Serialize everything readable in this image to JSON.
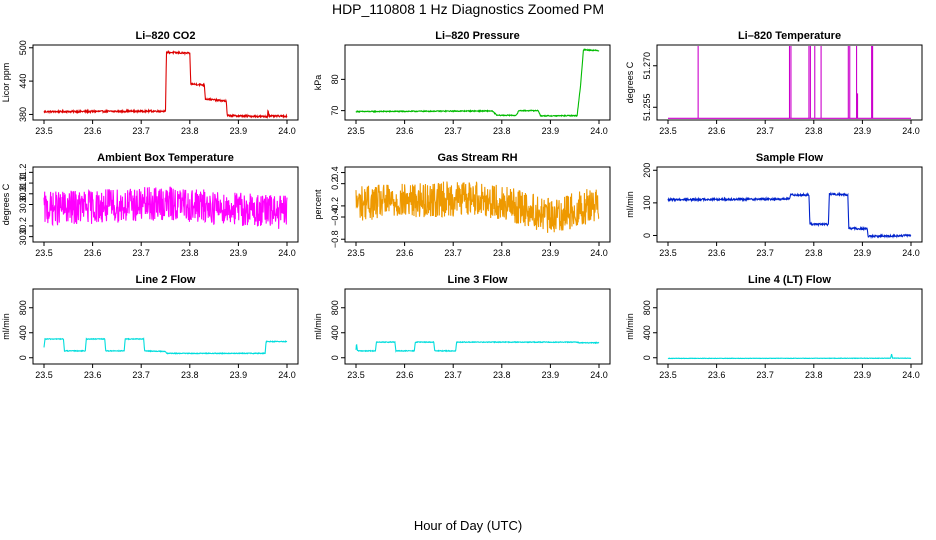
{
  "figure": {
    "title": "HDP_110808  1 Hz Diagnostics Zoomed PM",
    "xlabel": "Hour of Day (UTC)"
  },
  "chart_data": [
    {
      "type": "line",
      "title": "Li–820 CO2",
      "ylabel": "Licor ppm",
      "color": "#dd0000",
      "xlim": [
        23.5,
        24.0
      ],
      "ylim": [
        370,
        505
      ],
      "xticks": [
        "23.5",
        "23.6",
        "23.7",
        "23.8",
        "23.9",
        "24.0"
      ],
      "yticks": [
        {
          "v": 380,
          "label": "380"
        },
        {
          "v": 440,
          "label": "440"
        },
        {
          "v": 500,
          "label": "500"
        }
      ],
      "noise": 1.5,
      "segments": [
        [
          23.5,
          385
        ],
        [
          23.75,
          386
        ],
        [
          23.752,
          492
        ],
        [
          23.8,
          490
        ],
        [
          23.802,
          435
        ],
        [
          23.83,
          433
        ],
        [
          23.832,
          408
        ],
        [
          23.875,
          404
        ],
        [
          23.877,
          378
        ],
        [
          23.96,
          376
        ],
        [
          23.961,
          390
        ],
        [
          23.963,
          377
        ],
        [
          24.0,
          377
        ]
      ]
    },
    {
      "type": "line",
      "title": "Li–820 Pressure",
      "ylabel": "kPa",
      "color": "#00bb00",
      "xlim": [
        23.5,
        24.0
      ],
      "ylim": [
        67,
        91
      ],
      "xticks": [
        "23.5",
        "23.6",
        "23.7",
        "23.8",
        "23.9",
        "24.0"
      ],
      "yticks": [
        {
          "v": 70,
          "label": "70"
        },
        {
          "v": 80,
          "label": "80"
        }
      ],
      "noise": 0.15,
      "segments": [
        [
          23.5,
          69.7
        ],
        [
          23.78,
          69.9
        ],
        [
          23.79,
          68.5
        ],
        [
          23.83,
          68.5
        ],
        [
          23.835,
          70.0
        ],
        [
          23.875,
          70.0
        ],
        [
          23.88,
          68.3
        ],
        [
          23.955,
          68.4
        ],
        [
          23.962,
          78
        ],
        [
          23.968,
          89.5
        ],
        [
          24.0,
          89.2
        ]
      ]
    },
    {
      "type": "line",
      "title": "Li–820 Temperature",
      "ylabel": "degrees C",
      "color": "#cc00cc",
      "xlim": [
        23.5,
        24.0
      ],
      "ylim": [
        51.2504,
        51.2775
      ],
      "xticks": [
        "23.5",
        "23.6",
        "23.7",
        "23.8",
        "23.9",
        "24.0"
      ],
      "yticks": [
        {
          "v": 51.255,
          "label": "51.255"
        },
        {
          "v": 51.27,
          "label": "51.270"
        }
      ],
      "noise": 0,
      "base": 51.251,
      "spikes": [
        [
          23.562,
          51.2775
        ],
        [
          23.75,
          51.2775
        ],
        [
          23.753,
          51.2775
        ],
        [
          23.79,
          51.2775
        ],
        [
          23.793,
          51.2775
        ],
        [
          23.802,
          51.2775
        ],
        [
          23.815,
          51.2775
        ],
        [
          23.871,
          51.2775
        ],
        [
          23.874,
          51.2775
        ],
        [
          23.888,
          51.2775
        ],
        [
          23.89,
          51.26
        ],
        [
          23.919,
          51.2775
        ],
        [
          23.921,
          51.2775
        ]
      ]
    },
    {
      "type": "line",
      "title": "Ambient Box Temperature",
      "ylabel": "degrees C",
      "color": "#ff00ff",
      "xlim": [
        23.5,
        24.0
      ],
      "ylim": [
        29.9,
        31.3
      ],
      "xticks": [
        "23.5",
        "23.6",
        "23.7",
        "23.8",
        "23.9",
        "24.0"
      ],
      "yticks": [
        {
          "v": 30.0,
          "label": "30.0"
        },
        {
          "v": 30.2,
          "label": "30.2"
        },
        {
          "v": 30.6,
          "label": "30.6"
        },
        {
          "v": 30.8,
          "label": "30.8"
        },
        {
          "v": 31.0,
          "label": "31.0"
        },
        {
          "v": 31.2,
          "label": "31.2"
        }
      ],
      "noise": 0.32,
      "segments": [
        [
          23.5,
          30.52
        ],
        [
          23.75,
          30.62
        ],
        [
          24.0,
          30.45
        ]
      ]
    },
    {
      "type": "line",
      "title": "Gas Stream RH",
      "ylabel": "percent",
      "color": "#ee9900",
      "xlim": [
        23.5,
        24.0
      ],
      "ylim": [
        -0.85,
        0.5
      ],
      "xticks": [
        "23.5",
        "23.6",
        "23.7",
        "23.8",
        "23.9",
        "24.0"
      ],
      "yticks": [
        {
          "v": -0.8,
          "label": "−0.8"
        },
        {
          "v": -0.4,
          "label": "−0.4"
        },
        {
          "v": -0.2,
          "label": "−0.2"
        },
        {
          "v": 0.2,
          "label": "0.2"
        },
        {
          "v": 0.4,
          "label": "0.4"
        }
      ],
      "noise": 0.32,
      "segments": [
        [
          23.5,
          -0.15
        ],
        [
          23.75,
          -0.05
        ],
        [
          23.85,
          -0.25
        ],
        [
          23.9,
          -0.4
        ],
        [
          24.0,
          -0.15
        ]
      ]
    },
    {
      "type": "line",
      "title": "Sample Flow",
      "ylabel": "ml/min",
      "color": "#0022cc",
      "xlim": [
        23.5,
        24.0
      ],
      "ylim": [
        -20,
        210
      ],
      "xticks": [
        "23.5",
        "23.6",
        "23.7",
        "23.8",
        "23.9",
        "24.0"
      ],
      "yticks": [
        {
          "v": 0,
          "label": "0"
        },
        {
          "v": 100,
          "label": "100"
        },
        {
          "v": 200,
          "label": "200"
        }
      ],
      "noise": 3,
      "segments": [
        [
          23.5,
          110
        ],
        [
          23.75,
          112
        ],
        [
          23.752,
          125
        ],
        [
          23.79,
          124
        ],
        [
          23.792,
          35
        ],
        [
          23.83,
          34
        ],
        [
          23.832,
          127
        ],
        [
          23.87,
          125
        ],
        [
          23.872,
          22
        ],
        [
          23.91,
          20
        ],
        [
          23.912,
          -3
        ],
        [
          24.0,
          0
        ]
      ]
    },
    {
      "type": "line",
      "title": "Line 2 Flow",
      "ylabel": "ml/min",
      "color": "#00dddd",
      "xlim": [
        23.5,
        24.0
      ],
      "ylim": [
        -100,
        1100
      ],
      "xticks": [
        "23.5",
        "23.6",
        "23.7",
        "23.8",
        "23.9",
        "24.0"
      ],
      "yticks": [
        {
          "v": 0,
          "label": "0"
        },
        {
          "v": 400,
          "label": "400"
        },
        {
          "v": 800,
          "label": "800"
        }
      ],
      "noise": 6,
      "segments": [
        [
          23.5,
          160
        ],
        [
          23.502,
          300
        ],
        [
          23.54,
          300
        ],
        [
          23.542,
          110
        ],
        [
          23.585,
          110
        ],
        [
          23.587,
          300
        ],
        [
          23.625,
          300
        ],
        [
          23.627,
          110
        ],
        [
          23.665,
          110
        ],
        [
          23.667,
          300
        ],
        [
          23.705,
          300
        ],
        [
          23.707,
          110
        ],
        [
          23.75,
          100
        ],
        [
          23.752,
          70
        ],
        [
          23.955,
          70
        ],
        [
          23.957,
          260
        ],
        [
          24.0,
          260
        ]
      ]
    },
    {
      "type": "line",
      "title": "Line 3 Flow",
      "ylabel": "ml/min",
      "color": "#00dddd",
      "xlim": [
        23.5,
        24.0
      ],
      "ylim": [
        -100,
        1100
      ],
      "xticks": [
        "23.5",
        "23.6",
        "23.7",
        "23.8",
        "23.9",
        "24.0"
      ],
      "yticks": [
        {
          "v": 0,
          "label": "0"
        },
        {
          "v": 400,
          "label": "400"
        },
        {
          "v": 800,
          "label": "800"
        }
      ],
      "noise": 6,
      "segments": [
        [
          23.5,
          120
        ],
        [
          23.501,
          230
        ],
        [
          23.503,
          110
        ],
        [
          23.54,
          110
        ],
        [
          23.542,
          250
        ],
        [
          23.58,
          250
        ],
        [
          23.582,
          110
        ],
        [
          23.62,
          110
        ],
        [
          23.622,
          250
        ],
        [
          23.66,
          250
        ],
        [
          23.662,
          110
        ],
        [
          23.705,
          110
        ],
        [
          23.707,
          250
        ],
        [
          23.955,
          250
        ],
        [
          23.96,
          240
        ],
        [
          24.0,
          240
        ]
      ]
    },
    {
      "type": "line",
      "title": "Line 4 (LT) Flow",
      "ylabel": "ml/min",
      "color": "#00dddd",
      "xlim": [
        23.5,
        24.0
      ],
      "ylim": [
        -100,
        1100
      ],
      "xticks": [
        "23.5",
        "23.6",
        "23.7",
        "23.8",
        "23.9",
        "24.0"
      ],
      "yticks": [
        {
          "v": 0,
          "label": "0"
        },
        {
          "v": 400,
          "label": "400"
        },
        {
          "v": 800,
          "label": "800"
        }
      ],
      "noise": 3,
      "segments": [
        [
          23.5,
          -10
        ],
        [
          23.958,
          -8
        ],
        [
          23.96,
          60
        ],
        [
          23.962,
          -5
        ],
        [
          24.0,
          -8
        ]
      ]
    }
  ]
}
